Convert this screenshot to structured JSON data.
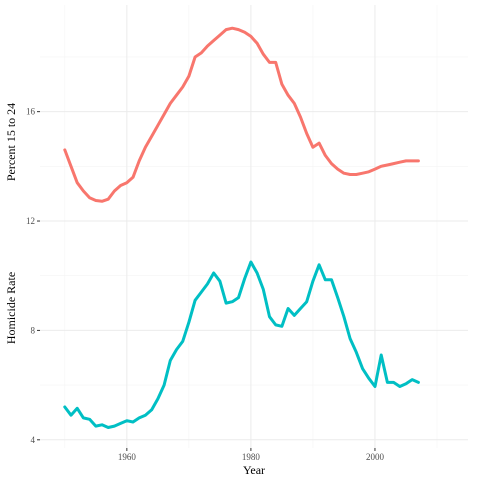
{
  "chart_data": {
    "type": "line",
    "title": "",
    "xlabel": "Year",
    "ylabel_top": "Percent 15 to 24",
    "ylabel_bottom": "Homicide Rate",
    "xlim": [
      1946,
      2015
    ],
    "ylim": [
      3.7,
      19.9
    ],
    "x_ticks": [
      1960,
      1980,
      2000
    ],
    "y_ticks": [
      4,
      8,
      12,
      16
    ],
    "grid": true,
    "series": [
      {
        "color": "#F8766D",
        "x": [
          1950,
          1951,
          1952,
          1953,
          1954,
          1955,
          1956,
          1957,
          1958,
          1959,
          1960,
          1961,
          1962,
          1963,
          1964,
          1965,
          1966,
          1967,
          1968,
          1969,
          1970,
          1971,
          1972,
          1973,
          1974,
          1975,
          1976,
          1977,
          1978,
          1979,
          1980,
          1981,
          1982,
          1983,
          1984,
          1985,
          1986,
          1987,
          1988,
          1989,
          1990,
          1991,
          1992,
          1993,
          1994,
          1995,
          1996,
          1997,
          1998,
          1999,
          2000,
          2001,
          2002,
          2003,
          2004,
          2005,
          2006,
          2007
        ],
        "y": [
          14.6,
          14.0,
          13.4,
          13.1,
          12.85,
          12.75,
          12.72,
          12.8,
          13.1,
          13.3,
          13.4,
          13.6,
          14.2,
          14.7,
          15.1,
          15.5,
          15.9,
          16.3,
          16.6,
          16.9,
          17.3,
          18.0,
          18.15,
          18.4,
          18.6,
          18.8,
          19.0,
          19.05,
          19.0,
          18.9,
          18.75,
          18.5,
          18.1,
          17.8,
          17.8,
          17.0,
          16.6,
          16.3,
          15.8,
          15.2,
          14.7,
          14.85,
          14.4,
          14.1,
          13.9,
          13.75,
          13.7,
          13.7,
          13.75,
          13.8,
          13.9,
          14.0,
          14.05,
          14.1,
          14.15,
          14.2,
          14.2,
          14.2
        ]
      },
      {
        "color": "#00BFC4",
        "x": [
          1950,
          1951,
          1952,
          1953,
          1954,
          1955,
          1956,
          1957,
          1958,
          1959,
          1960,
          1961,
          1962,
          1963,
          1964,
          1965,
          1966,
          1967,
          1968,
          1969,
          1970,
          1971,
          1972,
          1973,
          1974,
          1975,
          1976,
          1977,
          1978,
          1979,
          1980,
          1981,
          1982,
          1983,
          1984,
          1985,
          1986,
          1987,
          1988,
          1989,
          1990,
          1991,
          1992,
          1993,
          1994,
          1995,
          1996,
          1997,
          1998,
          1999,
          2000,
          2001,
          2002,
          2003,
          2004,
          2005,
          2006,
          2007
        ],
        "y": [
          5.2,
          4.9,
          5.15,
          4.8,
          4.75,
          4.5,
          4.55,
          4.45,
          4.5,
          4.6,
          4.7,
          4.65,
          4.8,
          4.9,
          5.1,
          5.5,
          6.0,
          6.9,
          7.3,
          7.6,
          8.3,
          9.1,
          9.4,
          9.7,
          10.1,
          9.8,
          9.0,
          9.05,
          9.2,
          9.9,
          10.5,
          10.1,
          9.5,
          8.5,
          8.2,
          8.15,
          8.8,
          8.55,
          8.8,
          9.05,
          9.8,
          10.4,
          9.85,
          9.85,
          9.2,
          8.5,
          7.7,
          7.2,
          6.6,
          6.25,
          5.95,
          7.1,
          6.1,
          6.1,
          5.95,
          6.05,
          6.2,
          6.1
        ]
      }
    ]
  }
}
